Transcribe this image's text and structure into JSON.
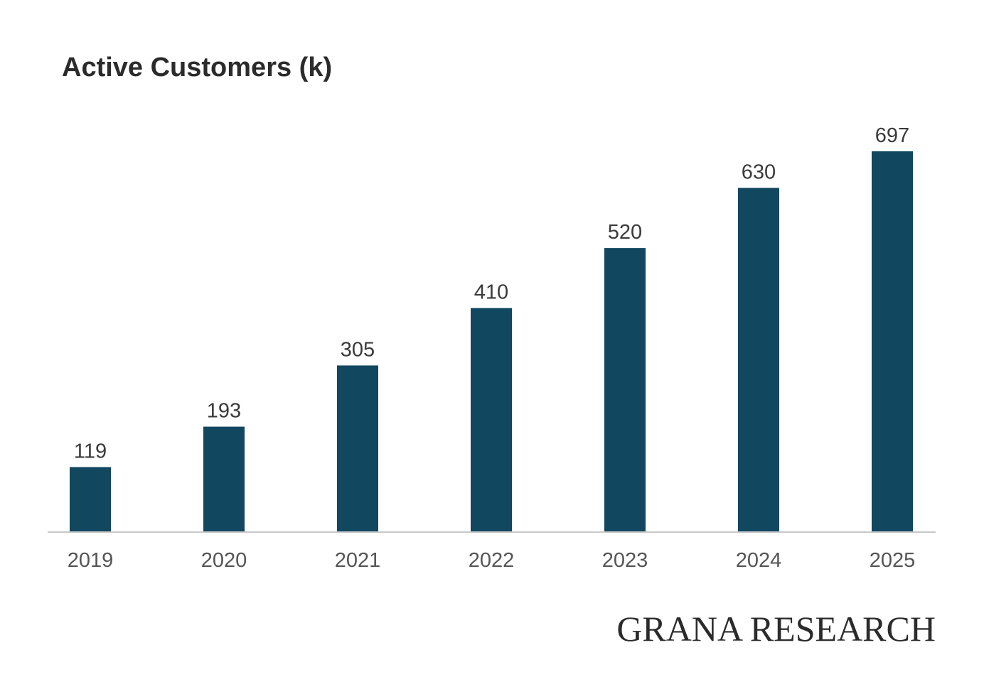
{
  "brand": "GRANA RESEARCH",
  "chart_data": {
    "type": "bar",
    "title": "Active Customers (k)",
    "xlabel": "",
    "ylabel": "",
    "categories": [
      "2019",
      "2020",
      "2021",
      "2022",
      "2023",
      "2024",
      "2025"
    ],
    "values": [
      119,
      193,
      305,
      410,
      520,
      630,
      697
    ],
    "value_labels": [
      "119",
      "193",
      "305",
      "410",
      "520",
      "630",
      "697"
    ],
    "ylim": [
      0,
      697
    ],
    "grid": false,
    "legend": "none",
    "bar_color": "#11475f",
    "axis_color": "#c8c8c8"
  }
}
